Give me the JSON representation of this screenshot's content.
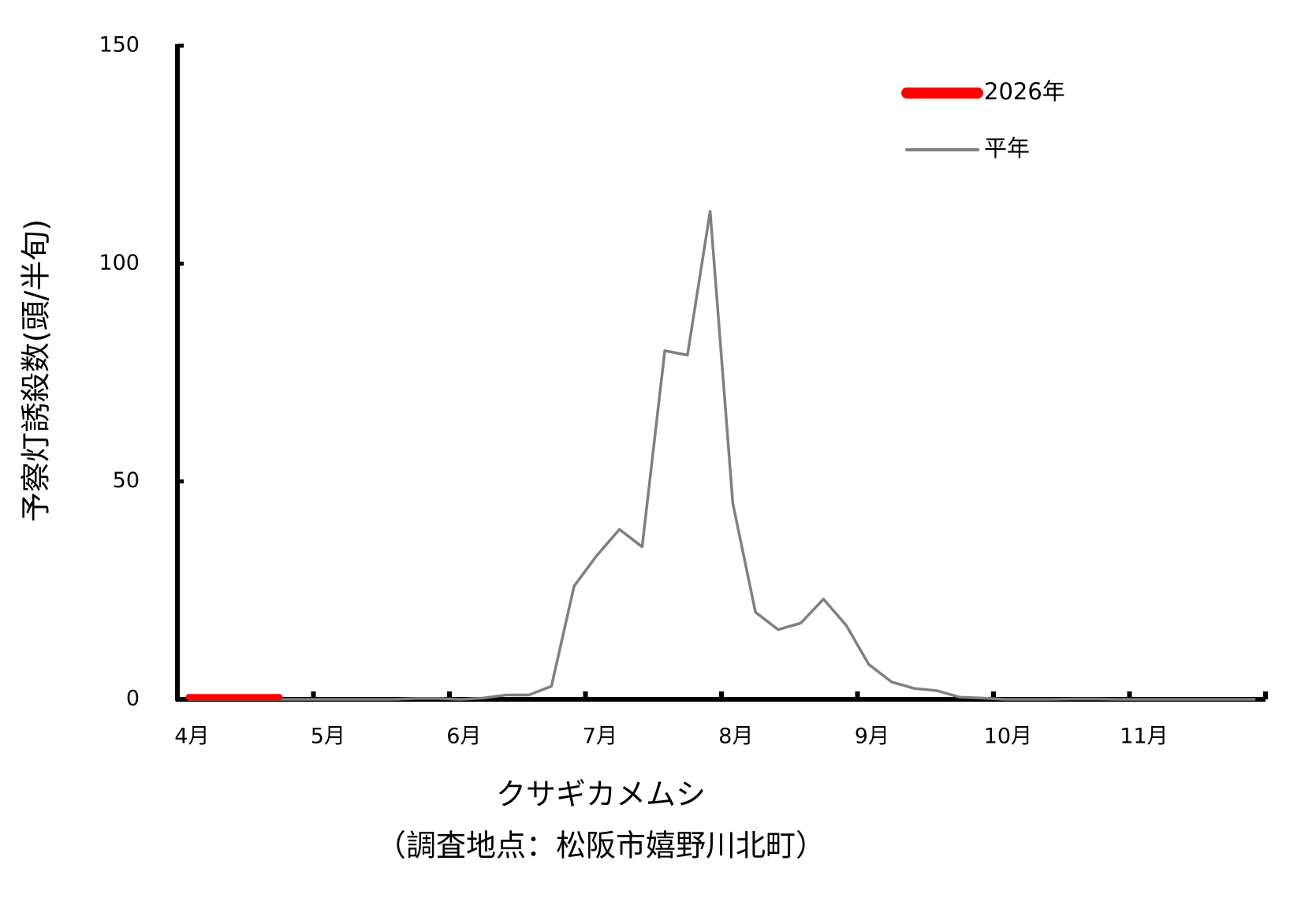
{
  "chart_data": {
    "type": "line",
    "title": "クサギカメムシ",
    "subtitle": "（調査地点：松阪市嬉野川北町）",
    "y_label": "予察灯誘殺数(頭/半旬)",
    "categories": [
      "4月",
      null,
      null,
      null,
      null,
      null,
      "5月",
      null,
      null,
      null,
      null,
      null,
      "6月",
      null,
      null,
      null,
      null,
      null,
      "7月",
      null,
      null,
      null,
      null,
      null,
      "8月",
      null,
      null,
      null,
      null,
      null,
      "9月",
      null,
      null,
      null,
      null,
      null,
      "10月",
      null,
      null,
      null,
      null,
      null,
      "11月",
      null,
      null,
      null,
      null,
      null
    ],
    "series": [
      {
        "name": "2026年",
        "color": "#ff0000",
        "values": [
          0.5,
          0.5,
          0.5,
          0.5,
          0.5,
          null,
          null,
          null,
          null,
          null,
          null,
          null,
          null,
          null,
          null,
          null,
          null,
          null,
          null,
          null,
          null,
          null,
          null,
          null,
          null,
          null,
          null,
          null,
          null,
          null,
          null,
          null,
          null,
          null,
          null,
          null,
          null,
          null,
          null,
          null,
          null,
          null,
          null,
          null,
          null,
          null,
          null,
          null
        ]
      },
      {
        "name": "平年",
        "color": "#808080",
        "values": [
          0,
          0,
          0,
          0,
          0,
          0,
          0,
          0,
          0,
          0,
          0.2,
          0.2,
          0,
          0.3,
          1,
          1,
          3,
          26,
          33,
          39,
          35,
          80,
          79,
          112,
          45,
          20,
          16,
          17.5,
          23,
          17,
          8,
          4,
          2.5,
          2,
          0.5,
          0.3,
          0,
          0,
          0,
          0.1,
          0.1,
          0,
          0,
          0,
          0,
          0,
          0,
          0
        ]
      }
    ],
    "ylim": [
      0,
      150
    ],
    "yticks": [
      0,
      50,
      100,
      150
    ],
    "legend": "upper right"
  }
}
